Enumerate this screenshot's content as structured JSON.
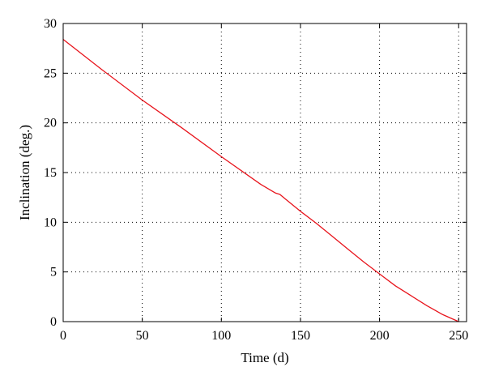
{
  "chart_data": {
    "type": "line",
    "title": "",
    "xlabel": "Time (d)",
    "ylabel": "Inclination (deg.)",
    "xlim": [
      0,
      255
    ],
    "ylim": [
      0,
      30
    ],
    "xticks": [
      0,
      50,
      100,
      150,
      200,
      250
    ],
    "yticks": [
      0,
      5,
      10,
      15,
      20,
      25,
      30
    ],
    "grid": "dotted",
    "legend": "none",
    "line_color": "#e8141c",
    "series": [
      {
        "x": [
          0,
          25,
          50,
          75,
          100,
          125,
          134,
          137,
          140,
          150,
          160,
          170,
          180,
          190,
          200,
          210,
          220,
          230,
          240,
          250
        ],
        "y": [
          28.4,
          25.3,
          22.3,
          19.5,
          16.6,
          13.8,
          12.95,
          12.8,
          12.4,
          11.1,
          9.9,
          8.6,
          7.3,
          6.0,
          4.8,
          3.6,
          2.6,
          1.6,
          0.7,
          0.0
        ]
      }
    ]
  }
}
